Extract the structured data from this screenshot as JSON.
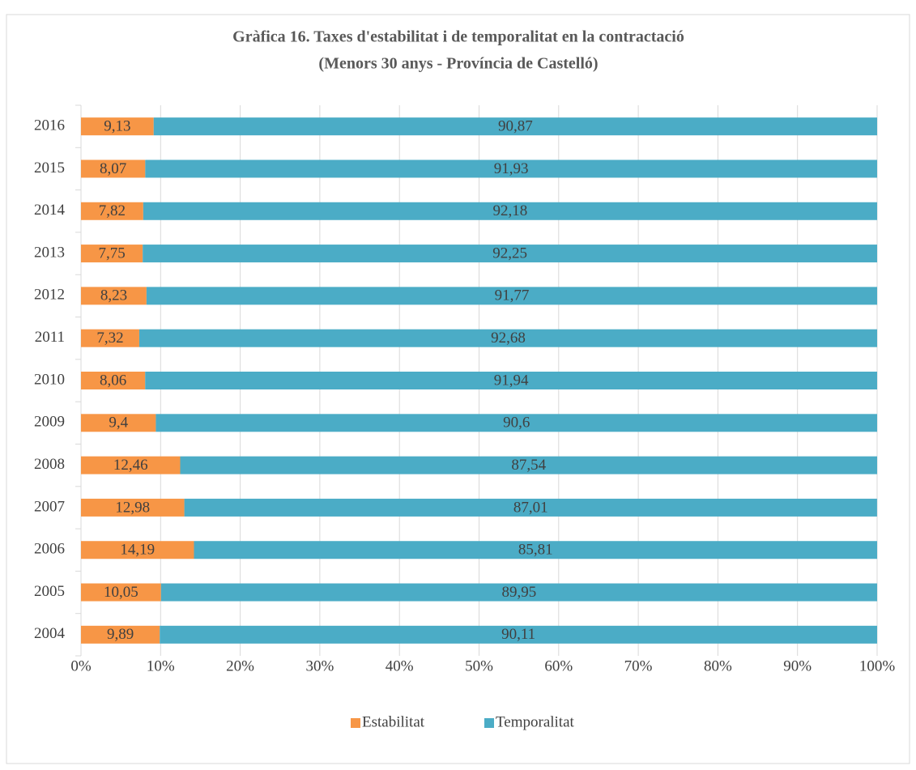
{
  "chart_data": {
    "type": "stacked_barh",
    "title": "Gràfica 16. Taxes d'estabilitat i de temporalitat en la contractació",
    "subtitle": "(Menors 30 anys - Província de Castelló)",
    "categories": [
      "2016",
      "2015",
      "2014",
      "2013",
      "2012",
      "2011",
      "2010",
      "2009",
      "2008",
      "2007",
      "2006",
      "2005",
      "2004"
    ],
    "series": [
      {
        "name": "Estabilitat",
        "color": "#f79646",
        "values": [
          9.13,
          8.07,
          7.82,
          7.75,
          8.23,
          7.32,
          8.06,
          9.4,
          12.46,
          12.98,
          14.19,
          10.05,
          9.89
        ],
        "value_labels": [
          "9,13",
          "8,07",
          "7,82",
          "7,75",
          "8,23",
          "7,32",
          "8,06",
          "9,4",
          "12,46",
          "12,98",
          "14,19",
          "10,05",
          "9,89"
        ]
      },
      {
        "name": "Temporalitat",
        "color": "#4bacc6",
        "values": [
          90.87,
          91.93,
          92.18,
          92.25,
          91.77,
          92.68,
          91.94,
          90.6,
          87.54,
          87.01,
          85.81,
          89.95,
          90.11
        ],
        "value_labels": [
          "90,87",
          "91,93",
          "92,18",
          "92,25",
          "91,77",
          "92,68",
          "91,94",
          "90,6",
          "87,54",
          "87,01",
          "85,81",
          "89,95",
          "90,11"
        ]
      }
    ],
    "xlim": [
      0,
      100
    ],
    "xticks": [
      {
        "value": 0,
        "label": "0%"
      },
      {
        "value": 10,
        "label": "10%"
      },
      {
        "value": 20,
        "label": "20%"
      },
      {
        "value": 30,
        "label": "30%"
      },
      {
        "value": 40,
        "label": "40%"
      },
      {
        "value": 50,
        "label": "50%"
      },
      {
        "value": 60,
        "label": "60%"
      },
      {
        "value": 70,
        "label": "70%"
      },
      {
        "value": 80,
        "label": "80%"
      },
      {
        "value": 90,
        "label": "90%"
      },
      {
        "value": 100,
        "label": "100%"
      }
    ],
    "grid": true,
    "legend": "bottom"
  }
}
